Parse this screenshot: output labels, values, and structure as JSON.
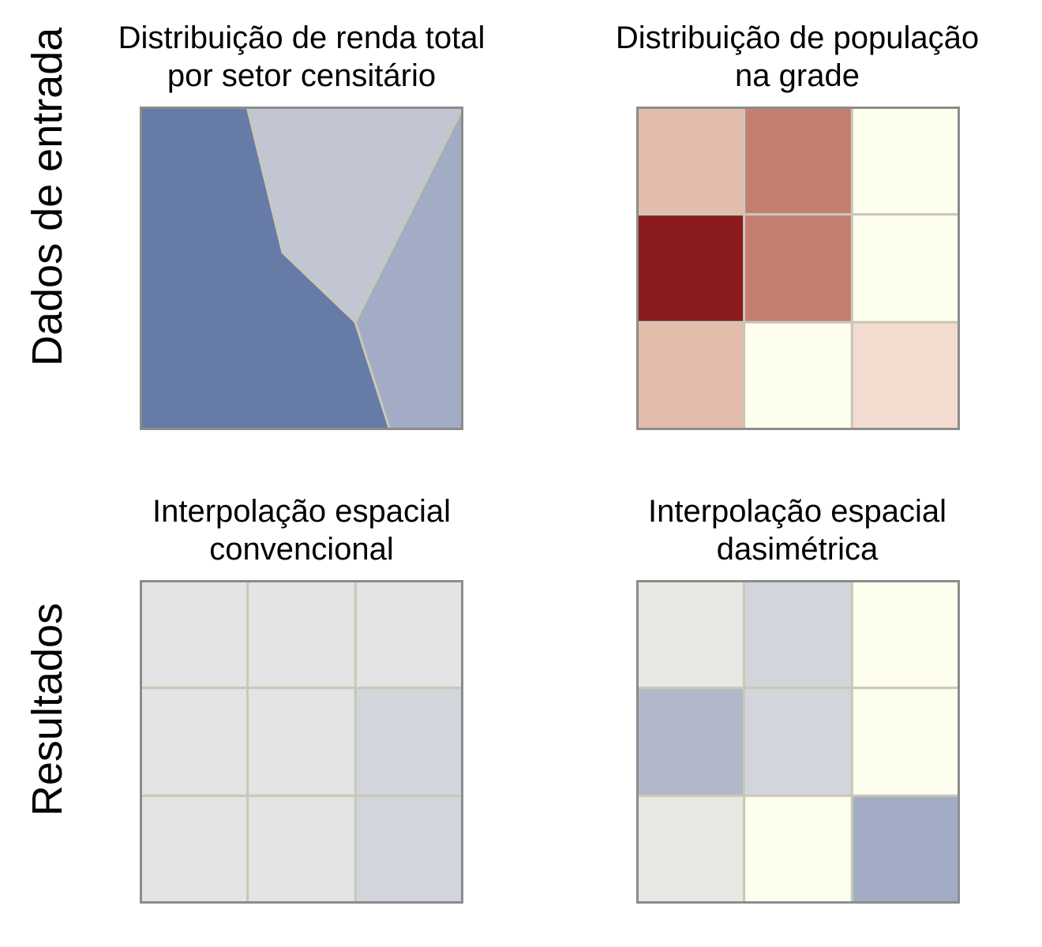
{
  "rows": {
    "top": "Dados de entrada",
    "bottom": "Resultados"
  },
  "panels": {
    "income": {
      "title_line1": "Distribuição de renda total",
      "title_line2": "por setor censitário",
      "colors": {
        "left": "#667ba6",
        "top": "#c1c6d2",
        "right": "#a2adc5",
        "border": "#c9c8b8"
      }
    },
    "population": {
      "title_line1": "Distribuição de população",
      "title_line2": "na grade",
      "cells": [
        "#e3bcab",
        "#c47e6f",
        "#fefeef",
        "#8a1a1d",
        "#c47e6f",
        "#fefeef",
        "#e3bcab",
        "#fefeef",
        "#f2dccf"
      ]
    },
    "conventional": {
      "title_line1": "Interpolação espacial",
      "title_line2": "convencional",
      "cells": [
        "#e3e4e3",
        "#e3e4e3",
        "#e3e4e3",
        "#e3e4e3",
        "#e3e4e3",
        "#d2d6dc",
        "#e3e4e3",
        "#e3e4e3",
        "#d2d6dc"
      ]
    },
    "dasymetric": {
      "title_line1": "Interpolação espacial",
      "title_line2": "dasimétrica",
      "cells": [
        "#e6e8e3",
        "#d2d6dc",
        "#fefeef",
        "#b0b8ca",
        "#d2d6dc",
        "#fefeef",
        "#e6e8e3",
        "#fefeef",
        "#a2adc5"
      ]
    }
  },
  "style": {
    "frame": "#8c8c8c",
    "grid_line": "#c9c8b8"
  }
}
